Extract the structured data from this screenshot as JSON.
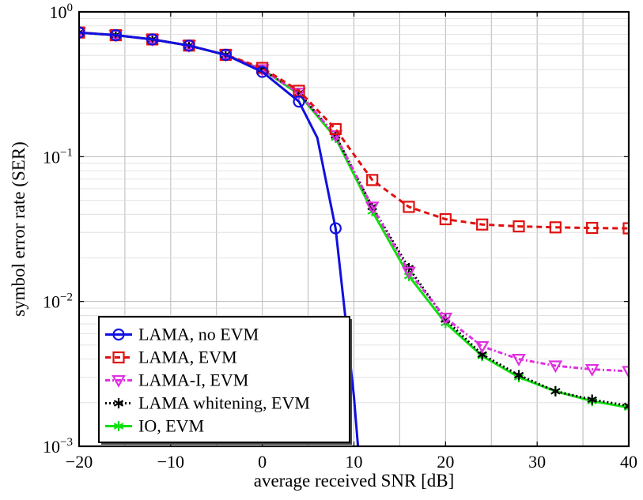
{
  "chart_data": {
    "type": "line",
    "xlabel": "average received SNR [dB]",
    "ylabel": "symbol error rate (SER)",
    "xlim": [
      -20,
      40
    ],
    "ylim": [
      0.001,
      1
    ],
    "yscale": "log",
    "grid": true,
    "legend_position": "bottom-left",
    "x_ticks": [
      -20,
      -10,
      0,
      10,
      20,
      30,
      40
    ],
    "x_tick_labels": [
      "−20",
      "−10",
      "0",
      "10",
      "20",
      "30",
      "40"
    ],
    "y_ticks": [
      {
        "value": 1,
        "base": "10",
        "exp": "0"
      },
      {
        "value": 0.1,
        "base": "10",
        "exp": "−1"
      },
      {
        "value": 0.01,
        "base": "10",
        "exp": "−2"
      },
      {
        "value": 0.001,
        "base": "10",
        "exp": "−3"
      }
    ],
    "series": [
      {
        "name": "LAMA, no EVM",
        "color": "#1010e0",
        "dash": "",
        "marker": "circle",
        "x": [
          -20,
          -16,
          -12,
          -8,
          -4,
          0,
          4,
          6,
          8,
          9,
          10,
          10.5
        ],
        "y": [
          0.72,
          0.69,
          0.645,
          0.585,
          0.505,
          0.385,
          0.24,
          0.135,
          0.032,
          0.0085,
          0.0022,
          0.0009
        ],
        "marker_x": [
          -20,
          -16,
          -12,
          -8,
          -4,
          0,
          4,
          8
        ],
        "marker_y": [
          0.72,
          0.69,
          0.645,
          0.585,
          0.505,
          0.385,
          0.24,
          0.032
        ]
      },
      {
        "name": "LAMA, EVM",
        "color": "#e01010",
        "dash": "7,5",
        "marker": "square",
        "x": [
          -20,
          -16,
          -12,
          -8,
          -4,
          0,
          4,
          8,
          12,
          16,
          20,
          24,
          28,
          32,
          36,
          40
        ],
        "y": [
          0.72,
          0.69,
          0.645,
          0.585,
          0.505,
          0.41,
          0.285,
          0.155,
          0.069,
          0.045,
          0.037,
          0.034,
          0.033,
          0.0325,
          0.0322,
          0.032
        ]
      },
      {
        "name": "LAMA-I, EVM",
        "color": "#e030e0",
        "dash": "6,3,2,3",
        "marker": "triangle-down",
        "x": [
          -20,
          -16,
          -12,
          -8,
          -4,
          0,
          4,
          8,
          12,
          16,
          20,
          24,
          28,
          32,
          36,
          40
        ],
        "y": [
          0.72,
          0.69,
          0.645,
          0.585,
          0.505,
          0.4,
          0.275,
          0.14,
          0.045,
          0.016,
          0.0077,
          0.0049,
          0.004,
          0.0036,
          0.0034,
          0.0033
        ]
      },
      {
        "name": "LAMA whitening, EVM",
        "color": "#000000",
        "dash": "2,3",
        "marker": "star",
        "x": [
          -20,
          -16,
          -12,
          -8,
          -4,
          0,
          4,
          8,
          12,
          16,
          20,
          24,
          28,
          32,
          36,
          40
        ],
        "y": [
          0.72,
          0.69,
          0.645,
          0.585,
          0.505,
          0.4,
          0.275,
          0.14,
          0.045,
          0.017,
          0.0075,
          0.0043,
          0.0031,
          0.0024,
          0.0021,
          0.0019
        ]
      },
      {
        "name": "IO, EVM",
        "color": "#10e010",
        "dash": "",
        "marker": "star",
        "x": [
          -20,
          -16,
          -12,
          -8,
          -4,
          0,
          4,
          8,
          12,
          16,
          20,
          24,
          28,
          32,
          36,
          40
        ],
        "y": [
          0.72,
          0.69,
          0.645,
          0.585,
          0.505,
          0.4,
          0.27,
          0.135,
          0.042,
          0.015,
          0.0071,
          0.0042,
          0.003,
          0.0024,
          0.00205,
          0.00185
        ]
      }
    ]
  }
}
